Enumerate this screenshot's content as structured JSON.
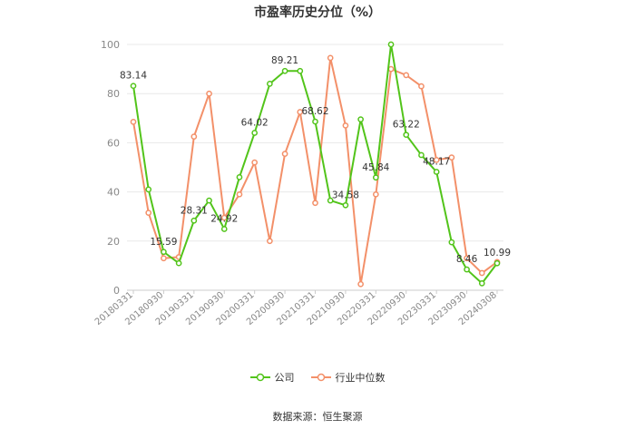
{
  "chart_data": {
    "type": "line",
    "title": "市盈率历史分位（%）",
    "source": "数据来源：恒生聚源",
    "ylim": [
      0,
      100
    ],
    "yticks": [
      0,
      20,
      40,
      60,
      80,
      100
    ],
    "grid": true,
    "legend_position": "bottom",
    "x_tick_labels": [
      "20180331",
      "20180930",
      "20190331",
      "20190930",
      "20200331",
      "20200930",
      "20210331",
      "20210930",
      "20220331",
      "20220930",
      "20230331",
      "20230930",
      "20240308"
    ],
    "x": [
      "20180331",
      "20180630",
      "20180930",
      "20181231",
      "20190331",
      "20190630",
      "20190930",
      "20191231",
      "20200331",
      "20200630",
      "20200930",
      "20201231",
      "20210331",
      "20210630",
      "20210930",
      "20211231",
      "20220331",
      "20220630",
      "20220930",
      "20221231",
      "20230331",
      "20230630",
      "20230930",
      "20231231",
      "20240308"
    ],
    "series": [
      {
        "name": "公司",
        "color": "#52c41a",
        "values": [
          83.14,
          41,
          15.59,
          11,
          28.31,
          36.5,
          24.92,
          46,
          64.02,
          84,
          89.21,
          89.21,
          68.62,
          36.5,
          34.58,
          69.5,
          45.84,
          100,
          63.22,
          55,
          48.17,
          19.5,
          8.46,
          2.8,
          10.99
        ],
        "labels": {
          "0": "83.14",
          "2": "15.59",
          "4": "28.31",
          "6": "24.92",
          "8": "64.02",
          "10": "89.21",
          "12": "68.62",
          "14": "34.58",
          "16": "45.84",
          "18": "63.22",
          "20": "48.17",
          "22": "8.46",
          "24": "10.99"
        }
      },
      {
        "name": "行业中位数",
        "color": "#f39069",
        "values": [
          68.5,
          31.5,
          13,
          13.5,
          62.5,
          80,
          29.5,
          39,
          52,
          20,
          55.5,
          72.5,
          35.5,
          94.5,
          67,
          2.5,
          39,
          90,
          87.5,
          83,
          53,
          54,
          13,
          7,
          11.5
        ]
      }
    ]
  }
}
